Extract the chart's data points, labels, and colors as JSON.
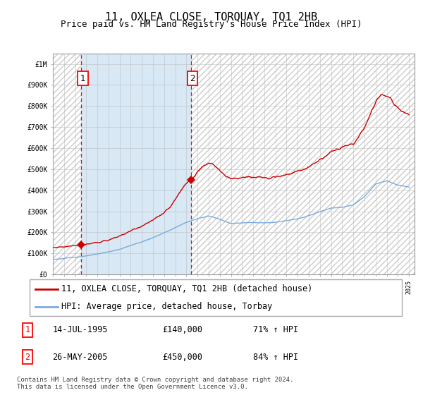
{
  "title": "11, OXLEA CLOSE, TORQUAY, TQ1 2HB",
  "subtitle": "Price paid vs. HM Land Registry's House Price Index (HPI)",
  "ylabel_ticks": [
    "£0",
    "£100K",
    "£200K",
    "£300K",
    "£400K",
    "£500K",
    "£600K",
    "£700K",
    "£800K",
    "£900K",
    "£1M"
  ],
  "ytick_values": [
    0,
    100000,
    200000,
    300000,
    400000,
    500000,
    600000,
    700000,
    800000,
    900000,
    1000000
  ],
  "ylim": [
    0,
    1050000
  ],
  "xlim_start": 1993.0,
  "xlim_end": 2025.5,
  "sale1_date": 1995.54,
  "sale1_price": 140000,
  "sale2_date": 2005.4,
  "sale2_price": 450000,
  "hpi_color": "#7aabdb",
  "price_color": "#cc0000",
  "dashed_line_color": "#cc0000",
  "blue_fill_color": "#d8e8f5",
  "hatch_color": "#cccccc",
  "grid_color": "#bbbbbb",
  "legend_label1": "11, OXLEA CLOSE, TORQUAY, TQ1 2HB (detached house)",
  "legend_label2": "HPI: Average price, detached house, Torbay",
  "note1_label": "1",
  "note1_date": "14-JUL-1995",
  "note1_price": "£140,000",
  "note1_hpi": "71% ↑ HPI",
  "note2_label": "2",
  "note2_date": "26-MAY-2005",
  "note2_price": "£450,000",
  "note2_hpi": "84% ↑ HPI",
  "copyright_text": "Contains HM Land Registry data © Crown copyright and database right 2024.\nThis data is licensed under the Open Government Licence v3.0.",
  "title_fontsize": 11,
  "subtitle_fontsize": 9,
  "tick_fontsize": 7,
  "legend_fontsize": 8.5,
  "note_fontsize": 8.5,
  "hpi_anchors_x": [
    1993,
    1994,
    1995,
    1996,
    1997,
    1998,
    1999,
    2000,
    2001,
    2002,
    2003,
    2004,
    2005,
    2006,
    2007,
    2008,
    2009,
    2010,
    2011,
    2012,
    2013,
    2014,
    2015,
    2016,
    2017,
    2018,
    2019,
    2020,
    2021,
    2022,
    2023,
    2024,
    2025
  ],
  "hpi_anchors_y": [
    72000,
    76000,
    82000,
    89000,
    97000,
    107000,
    120000,
    138000,
    155000,
    175000,
    198000,
    222000,
    248000,
    265000,
    278000,
    263000,
    242000,
    245000,
    248000,
    245000,
    248000,
    255000,
    265000,
    280000,
    298000,
    315000,
    320000,
    330000,
    370000,
    430000,
    445000,
    425000,
    415000
  ],
  "price_anchors_x": [
    1993,
    1994,
    1995.54,
    1996,
    1997,
    1998,
    1999,
    2000,
    2001,
    2002,
    2003,
    2003.5,
    2004,
    2004.5,
    2005.0,
    2005.4,
    2005.8,
    2006,
    2006.5,
    2007,
    2007.5,
    2008,
    2008.5,
    2009,
    2009.5,
    2010,
    2011,
    2012,
    2013,
    2014,
    2015,
    2016,
    2017,
    2018,
    2019,
    2020,
    2021,
    2021.5,
    2022,
    2022.5,
    2023,
    2023.3,
    2023.7,
    2024,
    2024.5,
    2025
  ],
  "price_anchors_y": [
    128000,
    132000,
    140000,
    143000,
    152000,
    163000,
    183000,
    207000,
    230000,
    258000,
    293000,
    318000,
    355000,
    398000,
    435000,
    450000,
    468000,
    490000,
    515000,
    530000,
    518000,
    492000,
    470000,
    453000,
    455000,
    460000,
    462000,
    460000,
    465000,
    475000,
    490000,
    510000,
    545000,
    582000,
    605000,
    620000,
    695000,
    760000,
    820000,
    855000,
    850000,
    840000,
    805000,
    790000,
    775000,
    760000
  ]
}
